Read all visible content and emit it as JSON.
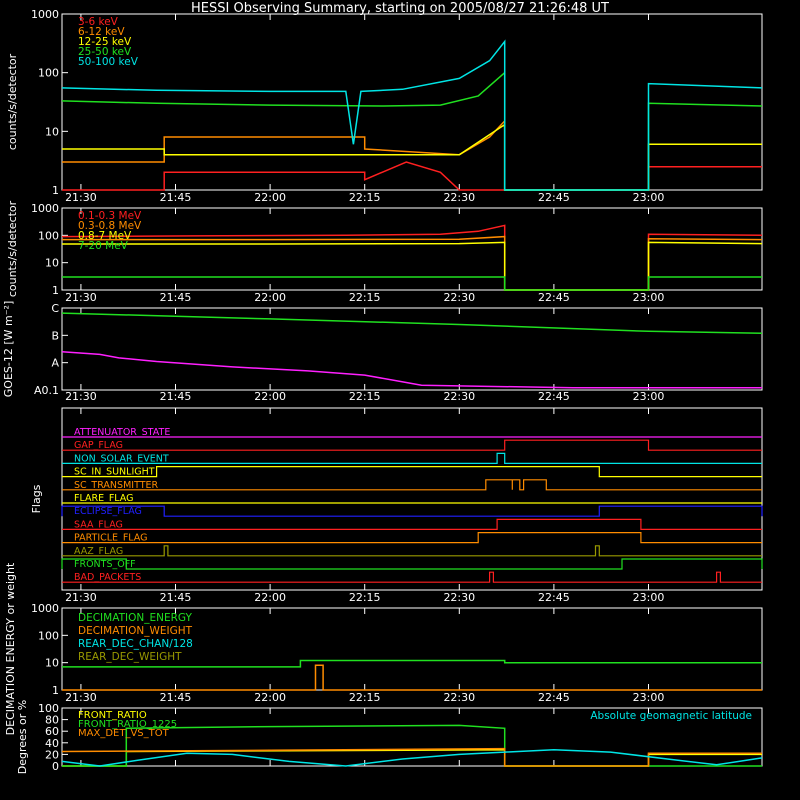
{
  "title": "HESSI Observing Summary, starting on 2005/08/27 21:26:48 UT",
  "time_ticks": [
    "21:30",
    "21:45",
    "22:00",
    "22:15",
    "22:30",
    "22:45",
    "23:00"
  ],
  "chart_data": [
    {
      "type": "line",
      "id": "panel1",
      "ylabel": "counts/s/detector",
      "ylog": true,
      "yticks": [
        "1",
        "10",
        "100",
        "1000"
      ],
      "ylim": [
        1,
        1000
      ],
      "series": [
        {
          "name": "3-6 keV",
          "color": "#ff2020",
          "t": [
            21.45,
            21.72,
            21.72,
            22.25,
            22.25,
            22.36,
            22.45,
            22.5,
            22.62,
            22.62,
            23.0,
            23.0,
            23.3
          ],
          "values": [
            1,
            1,
            2,
            2,
            1.5,
            3,
            2,
            1,
            1,
            1,
            1,
            2.5,
            2.5
          ]
        },
        {
          "name": "6-12 keV",
          "color": "#ff8c00",
          "t": [
            21.45,
            21.72,
            21.72,
            22.25,
            22.25,
            22.5,
            22.58,
            22.62,
            22.62,
            23.0,
            23.0,
            23.3
          ],
          "values": [
            3,
            3,
            8,
            8,
            5,
            4,
            8,
            15,
            1,
            1,
            6,
            6
          ]
        },
        {
          "name": "12-25 keV",
          "color": "#ffff00",
          "t": [
            21.45,
            21.72,
            21.72,
            22.25,
            22.5,
            22.62,
            22.62,
            23.0,
            23.0,
            23.3
          ],
          "values": [
            5,
            5,
            4,
            4,
            4,
            13,
            1,
            1,
            6,
            6
          ]
        },
        {
          "name": "25-50 keV",
          "color": "#20e020",
          "t": [
            21.45,
            21.7,
            22.0,
            22.3,
            22.45,
            22.55,
            22.62,
            22.62,
            23.0,
            23.0,
            23.3
          ],
          "values": [
            33,
            30,
            28,
            27,
            28,
            40,
            100,
            1,
            1,
            30,
            27
          ]
        },
        {
          "name": "50-100 keV",
          "color": "#00e5e5",
          "t": [
            21.45,
            21.7,
            22.0,
            22.2,
            22.22,
            22.24,
            22.35,
            22.5,
            22.58,
            22.62,
            22.62,
            23.0,
            23.0,
            23.3
          ],
          "values": [
            55,
            50,
            48,
            48,
            6,
            48,
            52,
            80,
            160,
            340,
            1,
            1,
            65,
            55
          ]
        }
      ]
    },
    {
      "type": "line",
      "id": "panel2",
      "ylabel": "counts/s/detector",
      "ylog": true,
      "yticks": [
        "1",
        "10",
        "100",
        "1000"
      ],
      "ylim": [
        1,
        1000
      ],
      "series": [
        {
          "name": "0.1-0.3 MeV",
          "color": "#ff2020",
          "t": [
            21.45,
            21.8,
            22.2,
            22.45,
            22.55,
            22.62,
            22.62,
            23.0,
            23.0,
            23.3
          ],
          "values": [
            90,
            95,
            100,
            110,
            140,
            230,
            1,
            1,
            110,
            100
          ]
        },
        {
          "name": "0.3-0.8 MeV",
          "color": "#ff8c00",
          "t": [
            21.45,
            22.0,
            22.5,
            22.62,
            22.62,
            23.0,
            23.0,
            23.3
          ],
          "values": [
            70,
            70,
            72,
            90,
            1,
            1,
            75,
            70
          ]
        },
        {
          "name": "0.8-7 MeV",
          "color": "#ffff00",
          "t": [
            21.45,
            22.0,
            22.5,
            22.62,
            22.62,
            23.0,
            23.0,
            23.3
          ],
          "values": [
            48,
            48,
            50,
            55,
            1,
            1,
            55,
            50
          ]
        },
        {
          "name": "7-20 MeV",
          "color": "#20e020",
          "t": [
            21.45,
            22.0,
            22.5,
            22.62,
            22.62,
            23.0,
            23.0,
            23.3
          ],
          "values": [
            3,
            3,
            3,
            3,
            1,
            1,
            3,
            3
          ]
        }
      ]
    },
    {
      "type": "line",
      "id": "panel3",
      "ylabel": "GOES-12 [W m⁻²]",
      "ylog": true,
      "yticks": [
        "A0.1",
        "A",
        "B",
        "C"
      ],
      "ylim": [
        0.1,
        100
      ],
      "series": [
        {
          "name": "",
          "color": "#20e020",
          "t": [
            21.45,
            22.0,
            22.5,
            23.0,
            23.3
          ],
          "values": [
            65,
            40,
            25,
            14,
            12
          ]
        },
        {
          "name": "",
          "color": "#ff20ff",
          "t": [
            21.45,
            21.55,
            21.6,
            21.7,
            21.9,
            22.1,
            22.25,
            22.4,
            22.8,
            23.3
          ],
          "values": [
            2.5,
            2.0,
            1.5,
            1.1,
            0.7,
            0.5,
            0.35,
            0.15,
            0.12,
            0.12
          ]
        }
      ]
    },
    {
      "type": "line",
      "id": "panel4",
      "ylabel": "Flags",
      "flag_rows": [
        {
          "name": "ATTENUATOR_STATE",
          "color": "#ff20ff",
          "segments": []
        },
        {
          "name": "GAP_FLAG",
          "color": "#ff2020",
          "segments": [
            [
              22.62,
              23.0
            ]
          ]
        },
        {
          "name": "NON_SOLAR_EVENT",
          "color": "#00e5e5",
          "segments": [
            [
              22.6,
              22.62
            ]
          ]
        },
        {
          "name": "SC_IN_SUNLIGHT",
          "color": "#ffff00",
          "segments": [
            [
              21.7,
              22.87
            ]
          ]
        },
        {
          "name": "SC_TRANSMITTER",
          "color": "#ff8c00",
          "segments": [
            [
              22.57,
              22.64
            ],
            [
              22.64,
              22.66
            ],
            [
              22.67,
              22.73
            ]
          ]
        },
        {
          "name": "FLARE_FLAG",
          "color": "#ffff00",
          "segments": []
        },
        {
          "name": "ECLIPSE_FLAG",
          "color": "#2020ff",
          "segments": [
            [
              21.45,
              21.72
            ],
            [
              22.87,
              23.3
            ]
          ]
        },
        {
          "name": "SAA_FLAG",
          "color": "#ff2020",
          "segments": [
            [
              22.6,
              22.98
            ]
          ]
        },
        {
          "name": "PARTICLE_FLAG",
          "color": "#ff8c00",
          "segments": [
            [
              22.55,
              22.98
            ]
          ]
        },
        {
          "name": "AAZ_FLAG",
          "color": "#999900",
          "segments": [
            [
              21.72,
              21.73
            ],
            [
              22.86,
              22.87
            ]
          ]
        },
        {
          "name": "FRONTS_OFF",
          "color": "#20e020",
          "segments": [
            [
              21.45,
              21.62
            ],
            [
              22.93,
              23.3
            ]
          ]
        },
        {
          "name": "BAD_PACKETS",
          "color": "#ff2020",
          "segments": [
            [
              22.58,
              22.59
            ],
            [
              23.18,
              23.19
            ]
          ]
        }
      ]
    },
    {
      "type": "line",
      "id": "panel5",
      "ylabel": "DECIMATION ENERGY or weight",
      "ylog": true,
      "yticks": [
        "1",
        "10",
        "100",
        "1000"
      ],
      "ylim": [
        1,
        1000
      ],
      "series": [
        {
          "name": "DECIMATION_ENERGY",
          "color": "#20e020",
          "t": [
            21.45,
            22.08,
            22.08,
            22.62,
            22.62,
            23.3
          ],
          "values": [
            7,
            7,
            12,
            12,
            10,
            10
          ]
        },
        {
          "name": "DECIMATION_WEIGHT",
          "color": "#ff8c00",
          "t": [
            21.45,
            22.12,
            22.12,
            22.14,
            22.14,
            23.3
          ],
          "values": [
            1,
            1,
            8,
            8,
            1,
            1
          ]
        },
        {
          "name": "REAR_DEC_CHAN/128",
          "color": "#00e5e5",
          "t": [],
          "values": []
        },
        {
          "name": "REAR_DEC_WEIGHT",
          "color": "#999900",
          "t": [],
          "values": []
        }
      ]
    },
    {
      "type": "line",
      "id": "panel6",
      "ylabel": "Degrees or %",
      "ylog": false,
      "yticks": [
        "0",
        "20",
        "40",
        "60",
        "80",
        "100"
      ],
      "ylim": [
        0,
        100
      ],
      "annotation": "Absolute geomagnetic latitude",
      "series": [
        {
          "name": "FRONT_RATIO",
          "color": "#ffff00",
          "t": [
            21.45,
            21.62,
            21.62,
            22.62,
            22.62,
            23.0,
            23.0,
            23.3
          ],
          "values": [
            0,
            0,
            25,
            28,
            0,
            0,
            20,
            20
          ]
        },
        {
          "name": "FRONT_RATIO_1225",
          "color": "#20e020",
          "t": [
            21.45,
            21.62,
            21.62,
            22.0,
            22.5,
            22.62,
            22.62,
            23.3
          ],
          "values": [
            0,
            0,
            65,
            68,
            70,
            65,
            0,
            0
          ]
        },
        {
          "name": "MAX_DET_VS_TOT",
          "color": "#ff8c00",
          "t": [
            21.45,
            22.0,
            22.62,
            22.62,
            23.0,
            23.0,
            23.3
          ],
          "values": [
            25,
            27,
            30,
            0,
            0,
            22,
            22
          ]
        },
        {
          "name": "",
          "color": "#00e5e5",
          "t": [
            21.45,
            21.55,
            21.65,
            21.78,
            21.9,
            22.05,
            22.2,
            22.35,
            22.5,
            22.62,
            22.75,
            22.9,
            23.05,
            23.18,
            23.3
          ],
          "values": [
            8,
            0,
            10,
            22,
            20,
            8,
            0,
            12,
            20,
            24,
            28,
            24,
            12,
            2,
            14
          ]
        }
      ]
    }
  ]
}
